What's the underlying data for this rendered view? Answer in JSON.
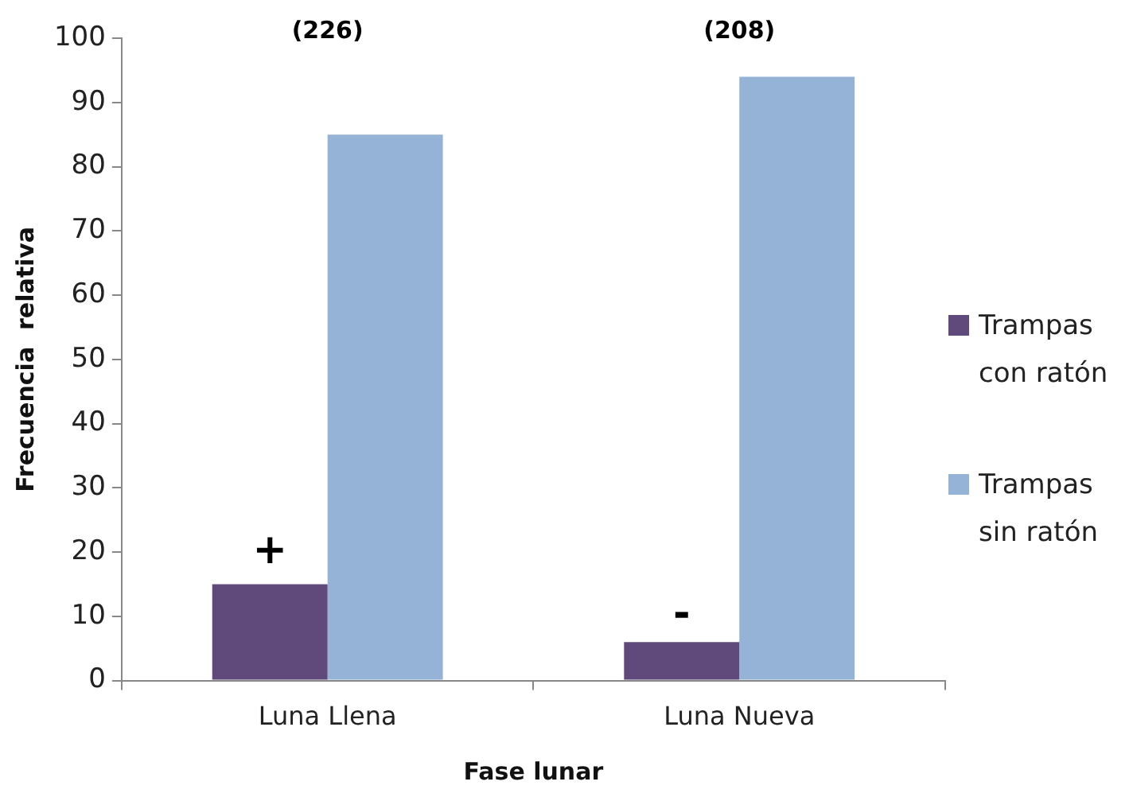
{
  "chart_data": {
    "type": "bar",
    "xlabel": "Fase lunar",
    "ylabel": "Frecuencia  relativa",
    "categories": [
      "Luna Llena",
      "Luna Nueva"
    ],
    "series": [
      {
        "name": "Trampas con ratón",
        "color": "#604a7b",
        "values": [
          15,
          6
        ]
      },
      {
        "name": "Trampas sin ratón",
        "color": "#95b3d7",
        "values": [
          85,
          94
        ]
      }
    ],
    "ylim": [
      0,
      100
    ],
    "yticks": [
      0,
      10,
      20,
      30,
      40,
      50,
      60,
      70,
      80,
      90,
      100
    ],
    "grid": false,
    "legend": "right",
    "annotations": [
      "(226)",
      "(208)",
      {
        "text": "+",
        "x": "Luna Llena",
        "y": 20
      },
      {
        "text": "-",
        "x": "Luna Nueva",
        "y": 10
      }
    ]
  }
}
